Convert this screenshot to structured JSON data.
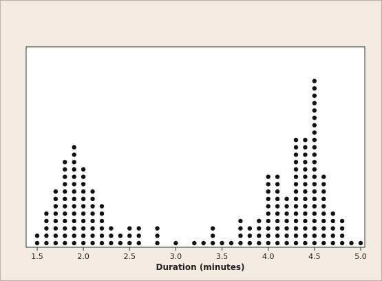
{
  "chart_data": {
    "type": "dotplot",
    "xlabel": "Duration (minutes)",
    "xlim": [
      1.5,
      5.0
    ],
    "ticks": [
      "1.5",
      "2.0",
      "2.5",
      "3.0",
      "3.5",
      "4.0",
      "4.5",
      "5.0"
    ],
    "tick_values": [
      1.5,
      2.0,
      2.5,
      3.0,
      3.5,
      4.0,
      4.5,
      5.0
    ],
    "dots_per_column": [
      {
        "x": 1.5,
        "count": 2
      },
      {
        "x": 1.6,
        "count": 5
      },
      {
        "x": 1.7,
        "count": 8
      },
      {
        "x": 1.8,
        "count": 12
      },
      {
        "x": 1.9,
        "count": 14
      },
      {
        "x": 2.0,
        "count": 11
      },
      {
        "x": 2.1,
        "count": 8
      },
      {
        "x": 2.2,
        "count": 6
      },
      {
        "x": 2.3,
        "count": 3
      },
      {
        "x": 2.4,
        "count": 2
      },
      {
        "x": 2.5,
        "count": 3
      },
      {
        "x": 2.6,
        "count": 3
      },
      {
        "x": 2.8,
        "count": 3
      },
      {
        "x": 3.0,
        "count": 1
      },
      {
        "x": 3.2,
        "count": 1
      },
      {
        "x": 3.3,
        "count": 1
      },
      {
        "x": 3.4,
        "count": 3
      },
      {
        "x": 3.5,
        "count": 1
      },
      {
        "x": 3.6,
        "count": 1
      },
      {
        "x": 3.7,
        "count": 4
      },
      {
        "x": 3.8,
        "count": 3
      },
      {
        "x": 3.9,
        "count": 4
      },
      {
        "x": 4.0,
        "count": 10
      },
      {
        "x": 4.1,
        "count": 10
      },
      {
        "x": 4.2,
        "count": 7
      },
      {
        "x": 4.3,
        "count": 15
      },
      {
        "x": 4.4,
        "count": 15
      },
      {
        "x": 4.5,
        "count": 23
      },
      {
        "x": 4.6,
        "count": 10
      },
      {
        "x": 4.7,
        "count": 5
      },
      {
        "x": 4.8,
        "count": 4
      },
      {
        "x": 4.9,
        "count": 1
      },
      {
        "x": 5.0,
        "count": 1
      }
    ],
    "colors": {
      "page_background": "#f3ebe1",
      "plot_background": "#ffffff",
      "dot": "#111111",
      "axis": "#333333"
    },
    "grid": false
  }
}
